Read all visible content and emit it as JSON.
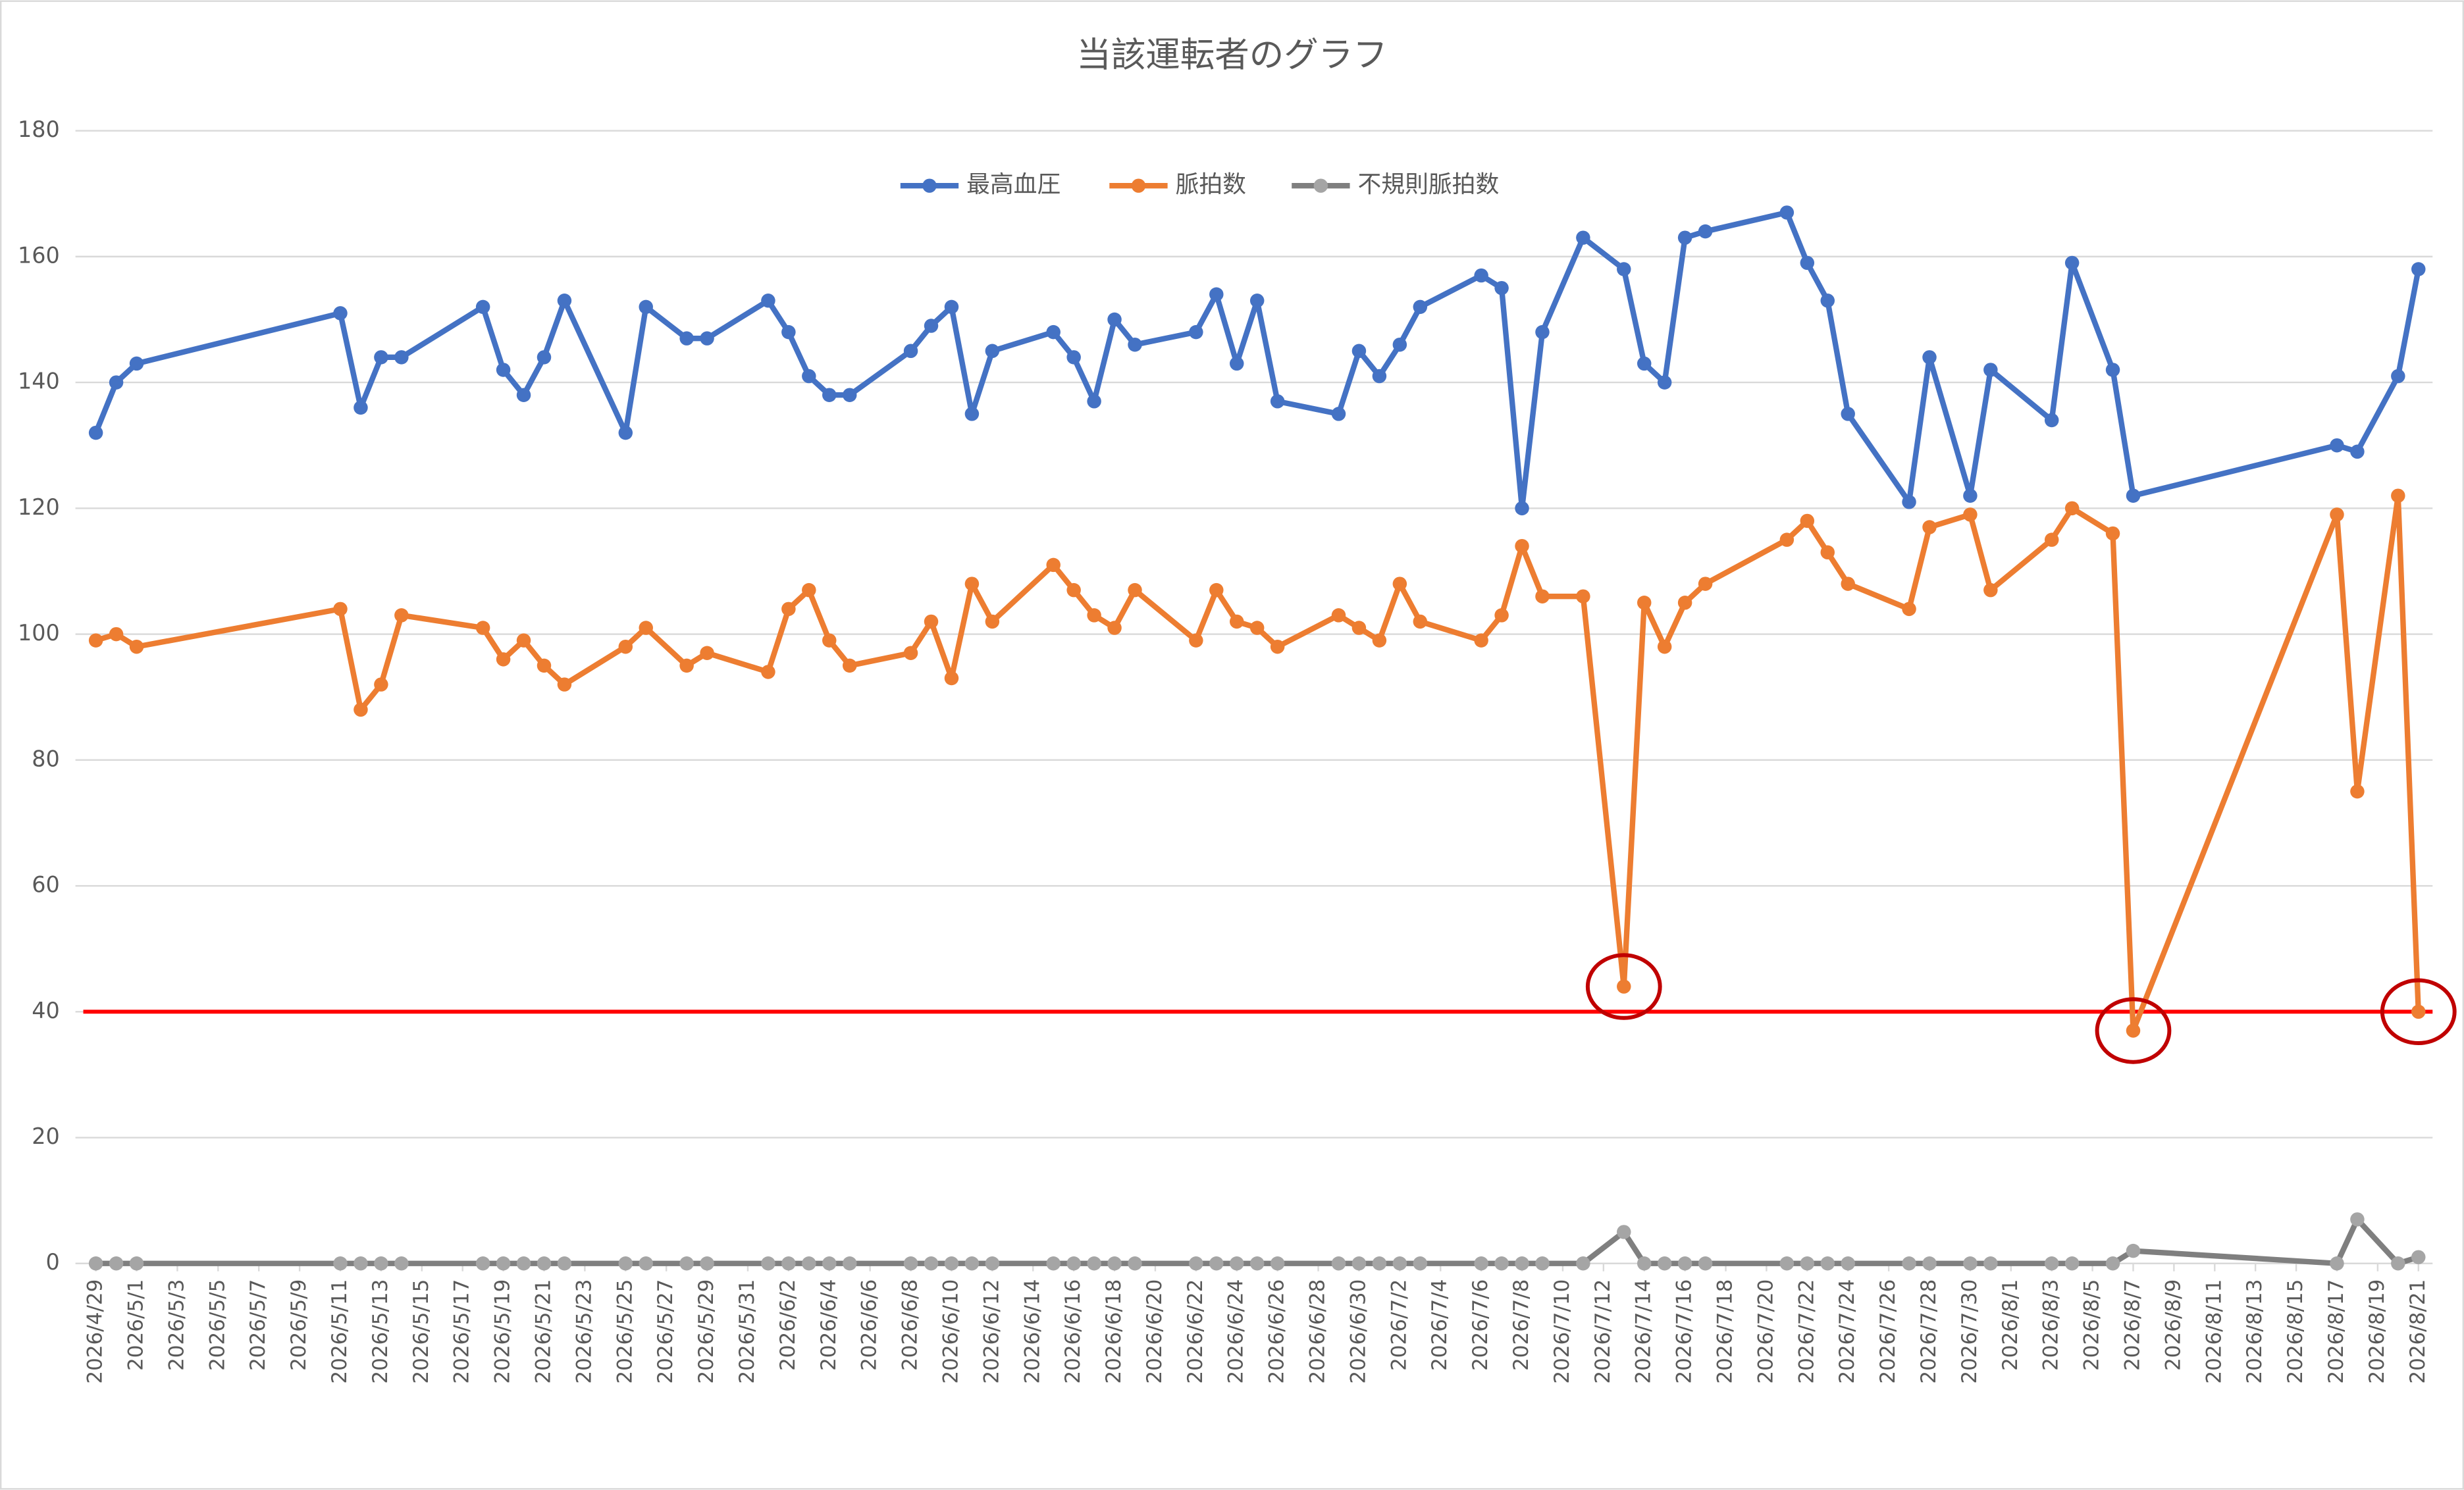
{
  "chart_data": {
    "type": "line",
    "title": "当該運転者のグラフ",
    "x": [
      "2026/4/29",
      "2026/4/30",
      "2026/5/1",
      "2026/5/11",
      "2026/5/12",
      "2026/5/13",
      "2026/5/14",
      "2026/5/18",
      "2026/5/19",
      "2026/5/20",
      "2026/5/21",
      "2026/5/22",
      "2026/5/25",
      "2026/5/26",
      "2026/5/28",
      "2026/5/29",
      "2026/6/1",
      "2026/6/2",
      "2026/6/3",
      "2026/6/4",
      "2026/6/5",
      "2026/6/8",
      "2026/6/9",
      "2026/6/10",
      "2026/6/11",
      "2026/6/12",
      "2026/6/15",
      "2026/6/16",
      "2026/6/17",
      "2026/6/18",
      "2026/6/19",
      "2026/6/22",
      "2026/6/23",
      "2026/6/24",
      "2026/6/25",
      "2026/6/26",
      "2026/6/29",
      "2026/6/30",
      "2026/7/1",
      "2026/7/2",
      "2026/7/3",
      "2026/7/6",
      "2026/7/7",
      "2026/7/8",
      "2026/7/9",
      "2026/7/11",
      "2026/7/13",
      "2026/7/14",
      "2026/7/15",
      "2026/7/16",
      "2026/7/17",
      "2026/7/21",
      "2026/7/22",
      "2026/7/23",
      "2026/7/24",
      "2026/7/27",
      "2026/7/28",
      "2026/7/30",
      "2026/7/31",
      "2026/8/3",
      "2026/8/4",
      "2026/8/6",
      "2026/8/7",
      "2026/8/17",
      "2026/8/18",
      "2026/8/20",
      "2026/8/21"
    ],
    "series": [
      {
        "name": "最高血圧",
        "color": "#4472c4",
        "values": [
          132,
          140,
          143,
          151,
          136,
          144,
          144,
          152,
          142,
          138,
          144,
          153,
          132,
          152,
          147,
          147,
          153,
          148,
          141,
          138,
          138,
          145,
          149,
          152,
          135,
          145,
          148,
          144,
          137,
          150,
          146,
          148,
          154,
          143,
          153,
          137,
          135,
          145,
          141,
          146,
          152,
          157,
          155,
          120,
          148,
          163,
          158,
          143,
          140,
          163,
          164,
          167,
          159,
          153,
          135,
          121,
          144,
          122,
          142,
          134,
          159,
          142,
          122,
          130,
          129,
          141,
          158
        ]
      },
      {
        "name": "脈拍数",
        "color": "#ed7d31",
        "values": [
          99,
          100,
          98,
          104,
          88,
          92,
          103,
          101,
          96,
          99,
          95,
          92,
          98,
          101,
          95,
          97,
          94,
          104,
          107,
          99,
          95,
          97,
          102,
          93,
          108,
          102,
          111,
          107,
          103,
          101,
          107,
          99,
          107,
          102,
          101,
          98,
          103,
          101,
          99,
          108,
          102,
          99,
          103,
          114,
          106,
          106,
          44,
          105,
          98,
          105,
          108,
          115,
          118,
          113,
          108,
          104,
          117,
          119,
          107,
          115,
          120,
          116,
          37,
          119,
          75,
          122,
          40
        ]
      },
      {
        "name": "不規則脈拍数",
        "color": "#7f7f7f",
        "marker_color": "#a5a5a5",
        "values": [
          0,
          0,
          0,
          0,
          0,
          0,
          0,
          0,
          0,
          0,
          0,
          0,
          0,
          0,
          0,
          0,
          0,
          0,
          0,
          0,
          0,
          0,
          0,
          0,
          0,
          0,
          0,
          0,
          0,
          0,
          0,
          0,
          0,
          0,
          0,
          0,
          0,
          0,
          0,
          0,
          0,
          0,
          0,
          0,
          0,
          0,
          5,
          0,
          0,
          0,
          0,
          0,
          0,
          0,
          0,
          0,
          0,
          0,
          0,
          0,
          0,
          0,
          2,
          0,
          7,
          0,
          1
        ]
      }
    ],
    "xlim": [
      "2026/4/29",
      "2026/8/21"
    ],
    "xticks": [
      "2026/4/29",
      "2026/5/1",
      "2026/5/3",
      "2026/5/5",
      "2026/5/7",
      "2026/5/9",
      "2026/5/11",
      "2026/5/13",
      "2026/5/15",
      "2026/5/17",
      "2026/5/19",
      "2026/5/21",
      "2026/5/23",
      "2026/5/25",
      "2026/5/27",
      "2026/5/29",
      "2026/5/31",
      "2026/6/2",
      "2026/6/4",
      "2026/6/6",
      "2026/6/8",
      "2026/6/10",
      "2026/6/12",
      "2026/6/14",
      "2026/6/16",
      "2026/6/18",
      "2026/6/20",
      "2026/6/22",
      "2026/6/24",
      "2026/6/26",
      "2026/6/28",
      "2026/6/30",
      "2026/7/2",
      "2026/7/4",
      "2026/7/6",
      "2026/7/8",
      "2026/7/10",
      "2026/7/12",
      "2026/7/14",
      "2026/7/16",
      "2026/7/18",
      "2026/7/20",
      "2026/7/22",
      "2026/7/24",
      "2026/7/26",
      "2026/7/28",
      "2026/7/30",
      "2026/8/1",
      "2026/8/3",
      "2026/8/5",
      "2026/8/7",
      "2026/8/9",
      "2026/8/11",
      "2026/8/13",
      "2026/8/15",
      "2026/8/17",
      "2026/8/19",
      "2026/8/21"
    ],
    "ylim": [
      0,
      180
    ],
    "yticks": [
      0,
      20,
      40,
      60,
      80,
      100,
      120,
      140,
      160,
      180
    ],
    "grid": true,
    "legend": "top",
    "reference_line": {
      "value": 40,
      "color": "#ff0000"
    },
    "annotations": [
      {
        "type": "circle",
        "series": 1,
        "x": "2026/7/13",
        "color": "#c00000"
      },
      {
        "type": "circle",
        "series": 1,
        "x": "2026/8/7",
        "color": "#c00000"
      },
      {
        "type": "circle",
        "series": 1,
        "x": "2026/8/21",
        "color": "#c00000"
      }
    ]
  }
}
